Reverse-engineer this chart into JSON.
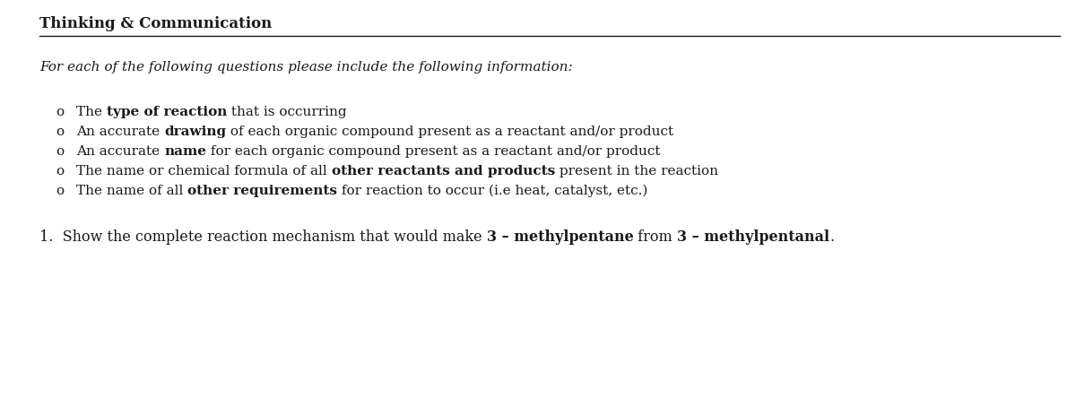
{
  "title": "Thinking & Communication",
  "intro": "For each of the following questions please include the following information:",
  "bullets": [
    {
      "prefix": "The ",
      "bold": "type of reaction",
      "suffix": " that is occurring"
    },
    {
      "prefix": "An accurate ",
      "bold": "drawing",
      "suffix": " of each organic compound present as a reactant and/or product"
    },
    {
      "prefix": "An accurate ",
      "bold": "name",
      "suffix": " for each organic compound present as a reactant and/or product"
    },
    {
      "prefix": "The name or chemical formula of all ",
      "bold": "other reactants and products",
      "suffix": " present in the reaction"
    },
    {
      "prefix": "The name of all ",
      "bold": "other requirements",
      "suffix": " for reaction to occur (i.e heat, catalyst, etc.)"
    }
  ],
  "question_prefix": "1.  Show the complete reaction mechanism that would make ",
  "question_bold1": "3 – methylpentane",
  "question_mid": " from ",
  "question_bold2": "3 – methylpentanal",
  "question_suffix": ".",
  "bg_color": "#ffffff",
  "text_color": "#1a1a1a",
  "title_fontsize": 12,
  "intro_fontsize": 11,
  "bullet_fontsize": 11,
  "question_fontsize": 11.5
}
